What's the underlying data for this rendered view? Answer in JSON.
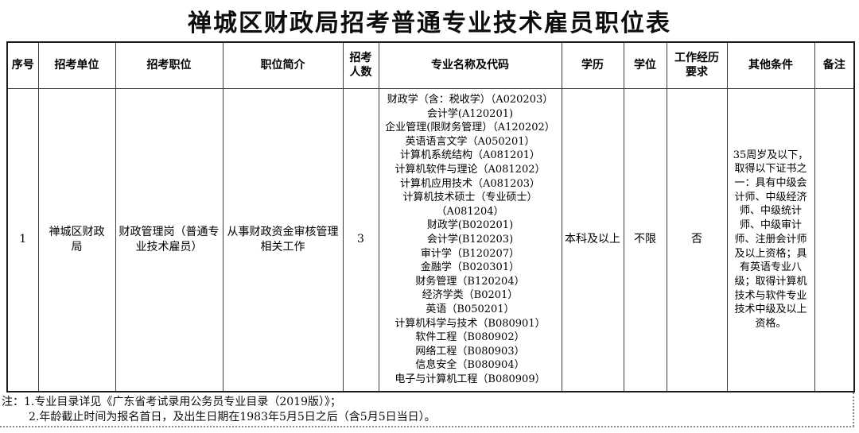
{
  "page": {
    "title": "禅城区财政局招考普通专业技术雇员职位表"
  },
  "table": {
    "headers": [
      "序号",
      "招考单位",
      "招考职位",
      "职位简介",
      "招考\n人数",
      "专业名称及代码",
      "学历",
      "学位",
      "工作经历\n要求",
      "其他条件",
      "备注"
    ],
    "row": {
      "seq": "1",
      "unit": "禅城区财政局",
      "position": "财政管理岗（普通专业技术雇员）",
      "duty": "从事财政资金审核管理相关工作",
      "headcount": "3",
      "majors": [
        "财政学（含：税收学）（A020203）",
        "会计学(A120201)",
        "企业管理(限财务管理）（A120202）",
        "英语语言文学（A050201）",
        "计算机系统结构（A081201）",
        "计算机软件与理论（A081202）",
        "计算机应用技术（A081203）",
        "计算机技术硕士（专业硕士）（A081204）",
        "财政学(B020201)",
        "会计学(B120203)",
        "审计学（B120207）",
        "金融学（B020301）",
        "财务管理（B120204）",
        "经济学类（B0201）",
        "英语（B050201）",
        "计算机科学与技术（B080901）",
        "软件工程（B080902）",
        "网络工程（B080903）",
        "信息安全（B080904）",
        "电子与计算机工程（B080909）"
      ],
      "education": "本科及以上",
      "degree": "不限",
      "work_experience": "否",
      "other_conditions": "35周岁及以下，取得以下证书之一：具有中级会计师、中级经济师、中级统计师、中级审计师、注册会计师及以上资格；具有英语专业八级；取得计算机技术与软件专业技术中级及以上资格。",
      "remark": ""
    }
  },
  "notes": {
    "line1": "注：1.专业目录详见《广东省考试录用公务员专业目录（2019版）》；",
    "line2": "2.年龄截止时间为报名首日，及出生日期在1983年5月5日之后（含5月5日当日）。"
  }
}
